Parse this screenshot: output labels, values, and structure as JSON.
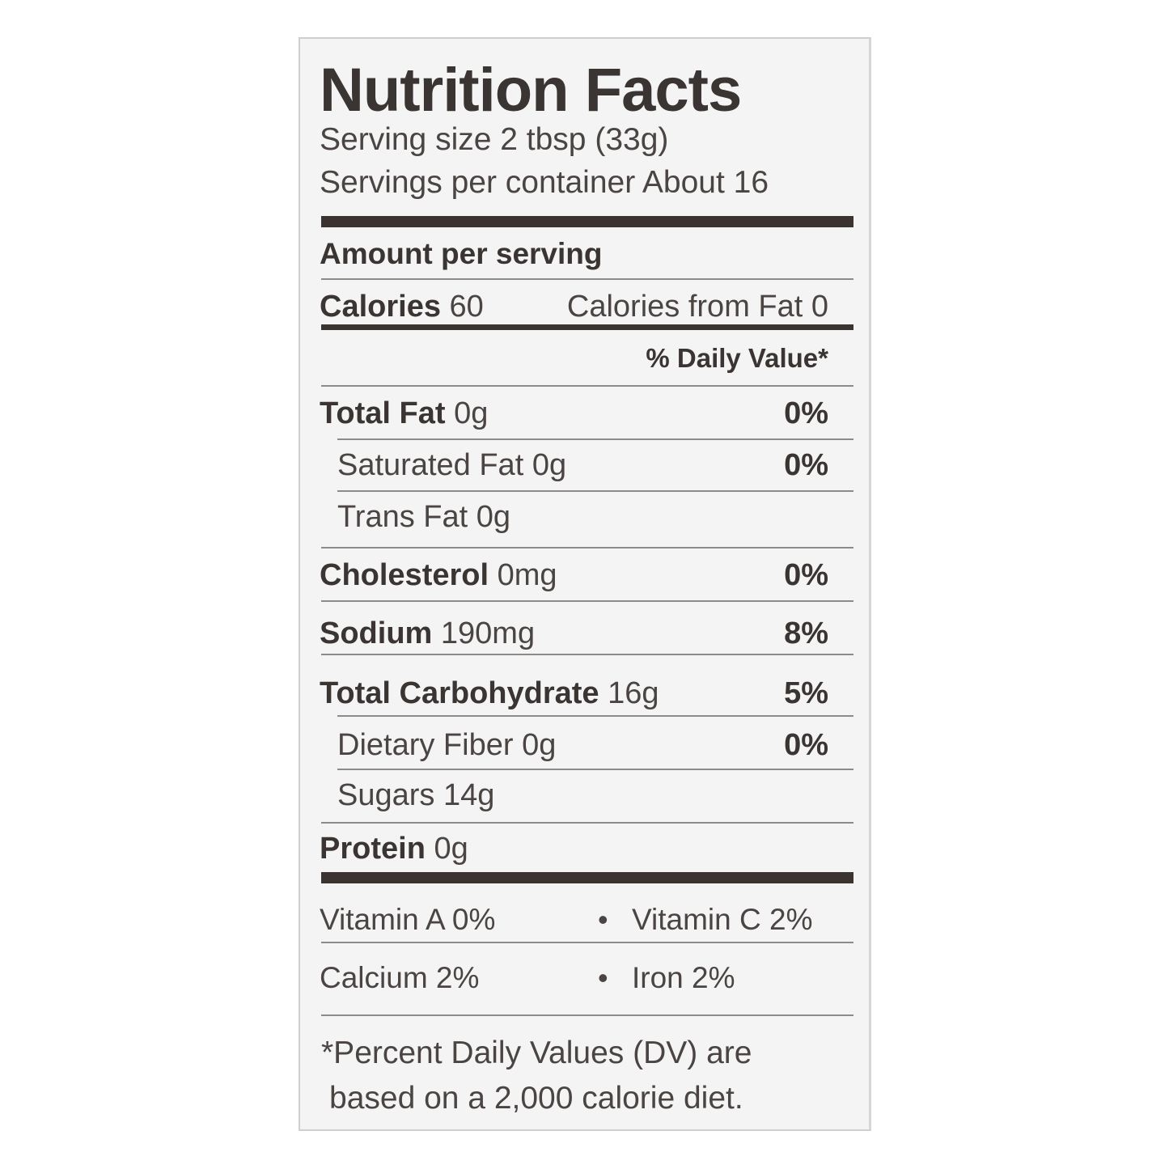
{
  "label": {
    "title": "Nutrition Facts",
    "serving_size": "Serving size 2 tbsp (33g)",
    "servings_per_container": "Servings per container About 16",
    "amount_per_serving": "Amount per serving",
    "calories_label": "Calories",
    "calories_value": "60",
    "calories_from_fat": "Calories from Fat 0",
    "daily_value_header": "% Daily Value*",
    "nutrients": [
      {
        "name": "Total Fat",
        "amount": "0g",
        "dv": "0%"
      },
      {
        "name": "Saturated Fat",
        "amount": "0g",
        "dv": "0%"
      },
      {
        "name": "Trans Fat",
        "amount": "0g",
        "dv": ""
      },
      {
        "name": "Cholesterol",
        "amount": "0mg",
        "dv": "0%"
      },
      {
        "name": "Sodium",
        "amount": "190mg",
        "dv": "8%"
      },
      {
        "name": "Total Carbohydrate",
        "amount": "16g",
        "dv": "5%"
      },
      {
        "name": "Dietary Fiber",
        "amount": "0g",
        "dv": "0%"
      },
      {
        "name": "Sugars",
        "amount": "14g",
        "dv": ""
      },
      {
        "name": "Protein",
        "amount": "0g",
        "dv": ""
      }
    ],
    "vitamins": [
      {
        "left": "Vitamin A 0%",
        "bullet": "•",
        "right": "Vitamin C 2%"
      },
      {
        "left": "Calcium 2%",
        "bullet": "•",
        "right": "Iron 2%"
      }
    ],
    "footnote_line1": "*Percent Daily Values (DV) are",
    "footnote_line2": "based on a 2,000 calorie diet."
  }
}
